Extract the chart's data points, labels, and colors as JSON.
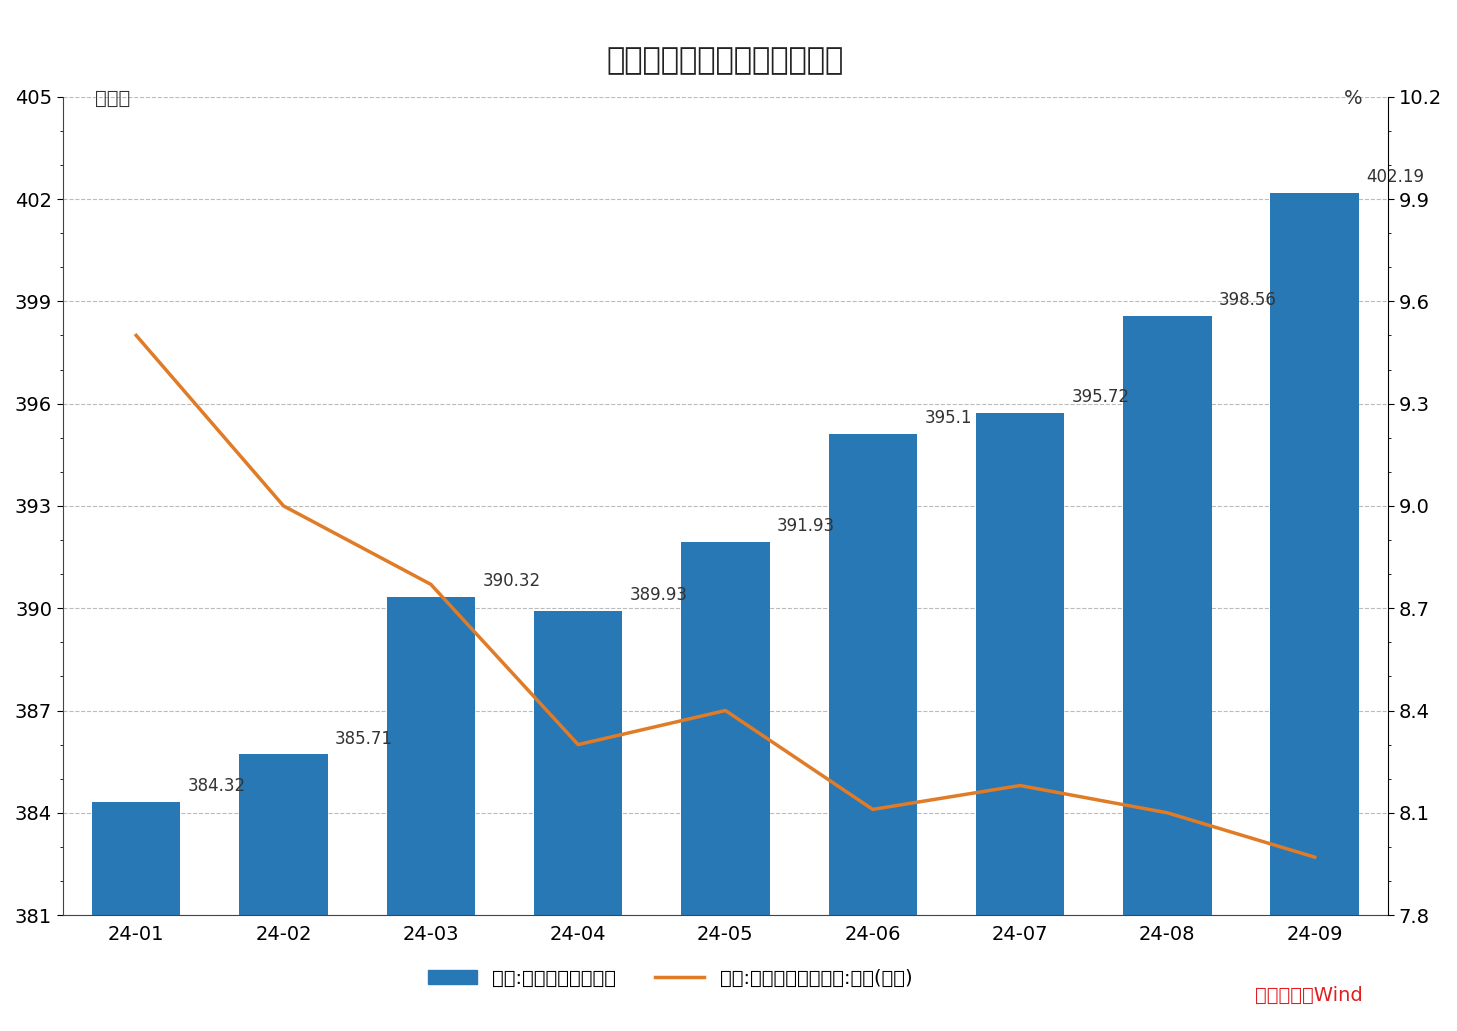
{
  "title": "社会融资规模存量及变化情况",
  "ylabel_left": "万亿元",
  "ylabel_right": "%",
  "categories": [
    "24-01",
    "24-02",
    "24-03",
    "24-04",
    "24-05",
    "24-06",
    "24-07",
    "24-08",
    "24-09"
  ],
  "bar_values": [
    384.32,
    385.71,
    390.32,
    389.93,
    391.93,
    395.1,
    395.72,
    398.56,
    402.19
  ],
  "line_values": [
    9.5,
    9.0,
    8.77,
    8.3,
    8.4,
    8.11,
    8.18,
    8.1,
    7.97
  ],
  "bar_color": "#2878b5",
  "line_color": "#e07b27",
  "ylim_left": [
    381,
    405
  ],
  "ylim_right": [
    7.8,
    10.2
  ],
  "yticks_left": [
    381,
    384,
    387,
    390,
    393,
    396,
    399,
    402,
    405
  ],
  "yticks_right": [
    7.8,
    8.1,
    8.4,
    8.7,
    9.0,
    9.3,
    9.6,
    9.9,
    10.2
  ],
  "legend_bar_label": "中国:社会融资规模存量",
  "legend_line_label": "中国:社会融资规模存量:同比(右轴)",
  "source_text": "数据来源：Wind",
  "background_color": "#ffffff",
  "grid_color": "#bbbbbb",
  "title_fontsize": 22,
  "tick_fontsize": 14,
  "label_fontsize": 14,
  "annotation_fontsize": 12
}
